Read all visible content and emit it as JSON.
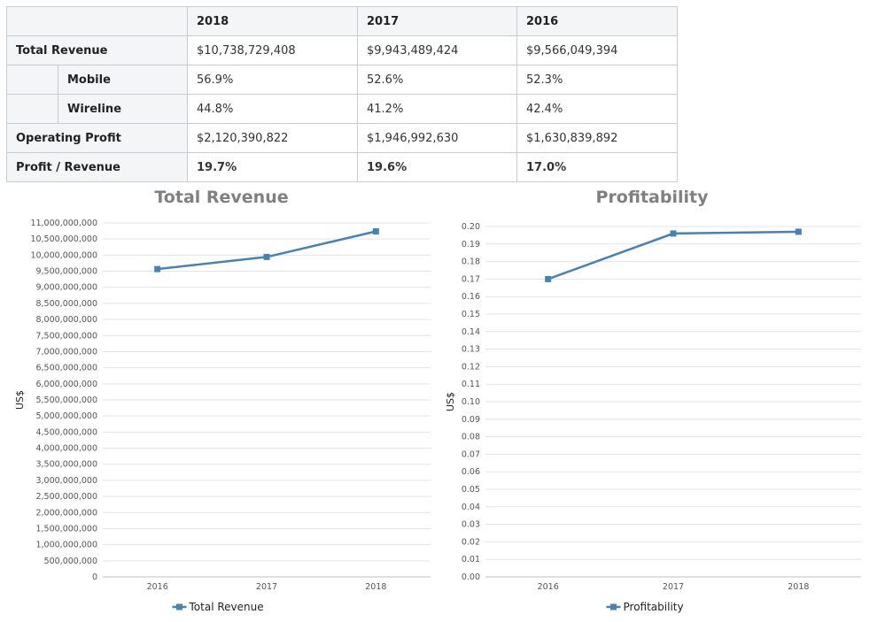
{
  "table": {
    "headers": [
      "",
      "2018",
      "2017",
      "2016"
    ],
    "rows": [
      {
        "label": "Total Revenue",
        "indent": false,
        "bold": false,
        "values": [
          "$10,738,729,408",
          "$9,943,489,424",
          "$9,566,049,394"
        ]
      },
      {
        "label": "Mobile",
        "indent": true,
        "bold": false,
        "values": [
          "56.9%",
          "52.6%",
          "52.3%"
        ]
      },
      {
        "label": "Wireline",
        "indent": true,
        "bold": false,
        "values": [
          "44.8%",
          "41.2%",
          "42.4%"
        ]
      },
      {
        "label": "Operating Profit",
        "indent": false,
        "bold": false,
        "values": [
          "$2,120,390,822",
          "$1,946,992,630",
          "$1,630,839,892"
        ]
      },
      {
        "label": "Profit / Revenue",
        "indent": false,
        "bold": true,
        "values": [
          "19.7%",
          "19.6%",
          "17.0%"
        ]
      }
    ]
  },
  "chart_data": [
    {
      "type": "line",
      "title": "Total Revenue",
      "xlabel": "",
      "ylabel": "US$",
      "categories": [
        "2016",
        "2017",
        "2018"
      ],
      "series": [
        {
          "name": "Total Revenue",
          "values": [
            9566049394,
            9943489424,
            10738729408
          ]
        }
      ],
      "ylim": [
        0,
        11000000000
      ],
      "ytick_step": 500000000,
      "grid": true,
      "legend": "bottom-center",
      "color": "#4682b4"
    },
    {
      "type": "line",
      "title": "Profitability",
      "xlabel": "",
      "ylabel": "US$",
      "categories": [
        "2016",
        "2017",
        "2018"
      ],
      "series": [
        {
          "name": "Profitability",
          "values": [
            0.17,
            0.196,
            0.197
          ]
        }
      ],
      "ylim": [
        0,
        0.2
      ],
      "ytick_step": 0.01,
      "grid": true,
      "legend": "bottom-center",
      "color": "#4682b4"
    }
  ]
}
